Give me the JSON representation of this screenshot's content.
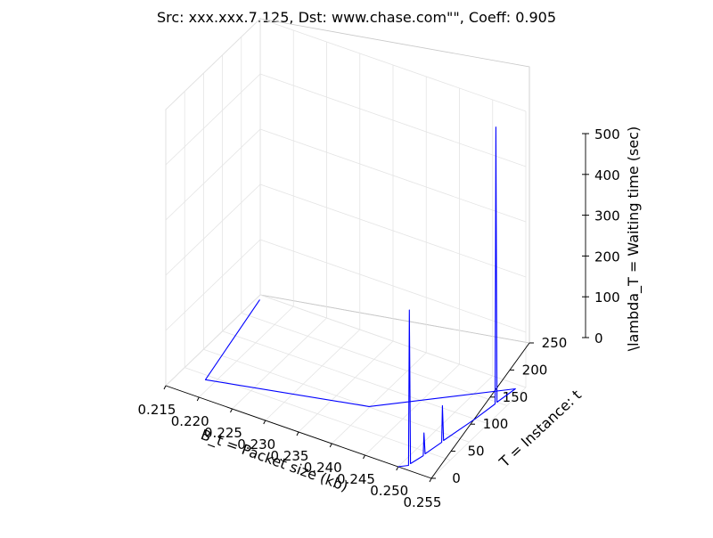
{
  "chart_data": {
    "type": "line",
    "projection": "3d",
    "title": "Src: xxx.xxx.7.125, Dst: www.chase.com\"\", Coeff: 0.905",
    "xlabel": "B_t = Packet size (kb)",
    "ylabel": "T = Instance: t",
    "zlabel": "\\lambda_T = Waiting time (sec)",
    "xlim": [
      0.215,
      0.255
    ],
    "ylim": [
      0,
      250
    ],
    "zlim": [
      0,
      500
    ],
    "xticks": [
      "0.215",
      "0.220",
      "0.225",
      "0.230",
      "0.235",
      "0.240",
      "0.245",
      "0.250",
      "0.255"
    ],
    "yticks": [
      "0",
      "50",
      "100",
      "150",
      "200",
      "250"
    ],
    "zticks": [
      "0",
      "100",
      "200",
      "300",
      "400",
      "500"
    ],
    "grid": true,
    "series": [
      {
        "color": "#0000ff",
        "points": [
          [
            0.25,
            0,
            0
          ],
          [
            0.251,
            10,
            0
          ],
          [
            0.251,
            12,
            280
          ],
          [
            0.251,
            15,
            0
          ],
          [
            0.2515,
            40,
            0
          ],
          [
            0.2515,
            42,
            40
          ],
          [
            0.2515,
            45,
            0
          ],
          [
            0.252,
            80,
            0
          ],
          [
            0.252,
            82,
            65
          ],
          [
            0.252,
            85,
            0
          ],
          [
            0.253,
            150,
            0
          ],
          [
            0.2535,
            195,
            0
          ],
          [
            0.2535,
            197,
            500
          ],
          [
            0.2535,
            200,
            0
          ],
          [
            0.254,
            240,
            0
          ],
          [
            0.2405,
            90,
            10
          ],
          [
            0.2187,
            40,
            0
          ],
          [
            0.2155,
            240,
            0
          ]
        ]
      }
    ]
  }
}
